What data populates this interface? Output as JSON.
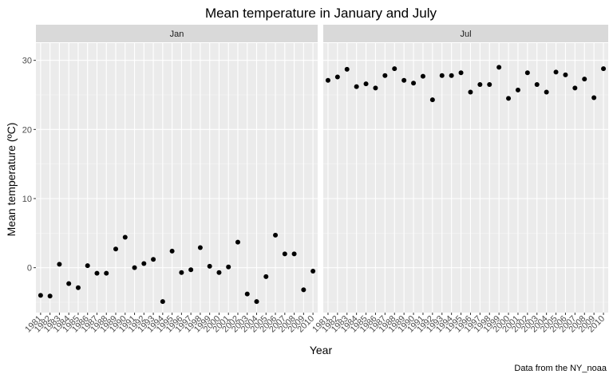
{
  "chart_data": {
    "type": "scatter",
    "title": "Mean temperature in January and July",
    "xlabel": "Year",
    "ylabel": "Mean temperature (ºC)",
    "caption": "Data from the NY_noaa",
    "xlim": [
      1980.5,
      2010.5
    ],
    "ylim": [
      -6.5,
      32.5
    ],
    "y_ticks": [
      0,
      10,
      20,
      30
    ],
    "x_ticks": [
      1981,
      1982,
      1983,
      1984,
      1985,
      1986,
      1987,
      1988,
      1989,
      1990,
      1991,
      1992,
      1993,
      1994,
      1995,
      1996,
      1997,
      1998,
      1999,
      2000,
      2001,
      2002,
      2003,
      2004,
      2005,
      2006,
      2007,
      2008,
      2009,
      2010
    ],
    "grid": true,
    "facets": [
      {
        "label": "Jan",
        "x": [
          1981,
          1982,
          1983,
          1984,
          1985,
          1986,
          1987,
          1988,
          1989,
          1990,
          1991,
          1992,
          1993,
          1994,
          1995,
          1996,
          1997,
          1998,
          1999,
          2000,
          2001,
          2002,
          2003,
          2004,
          2005,
          2006,
          2007,
          2008,
          2009,
          2010
        ],
        "y": [
          -4.0,
          -4.1,
          0.5,
          -2.3,
          -2.9,
          0.3,
          -0.8,
          -0.8,
          2.7,
          4.4,
          0.0,
          0.6,
          1.2,
          -4.9,
          2.4,
          -0.7,
          -0.3,
          2.9,
          0.2,
          -0.7,
          0.1,
          3.7,
          -3.8,
          -4.9,
          -1.3,
          4.7,
          2.0,
          2.0,
          -3.2,
          -0.5
        ]
      },
      {
        "label": "Jul",
        "x": [
          1981,
          1982,
          1983,
          1984,
          1985,
          1986,
          1987,
          1988,
          1989,
          1990,
          1991,
          1992,
          1993,
          1994,
          1995,
          1996,
          1997,
          1998,
          1999,
          2000,
          2001,
          2002,
          2003,
          2004,
          2005,
          2006,
          2007,
          2008,
          2009,
          2010
        ],
        "y": [
          27.1,
          27.6,
          28.7,
          26.2,
          26.6,
          26.0,
          27.8,
          28.8,
          27.1,
          26.7,
          27.7,
          24.3,
          27.8,
          27.8,
          28.2,
          25.4,
          26.5,
          26.5,
          29.0,
          24.5,
          25.7,
          28.2,
          26.5,
          25.4,
          28.3,
          27.9,
          26.0,
          27.3,
          24.6,
          28.8
        ]
      }
    ]
  }
}
